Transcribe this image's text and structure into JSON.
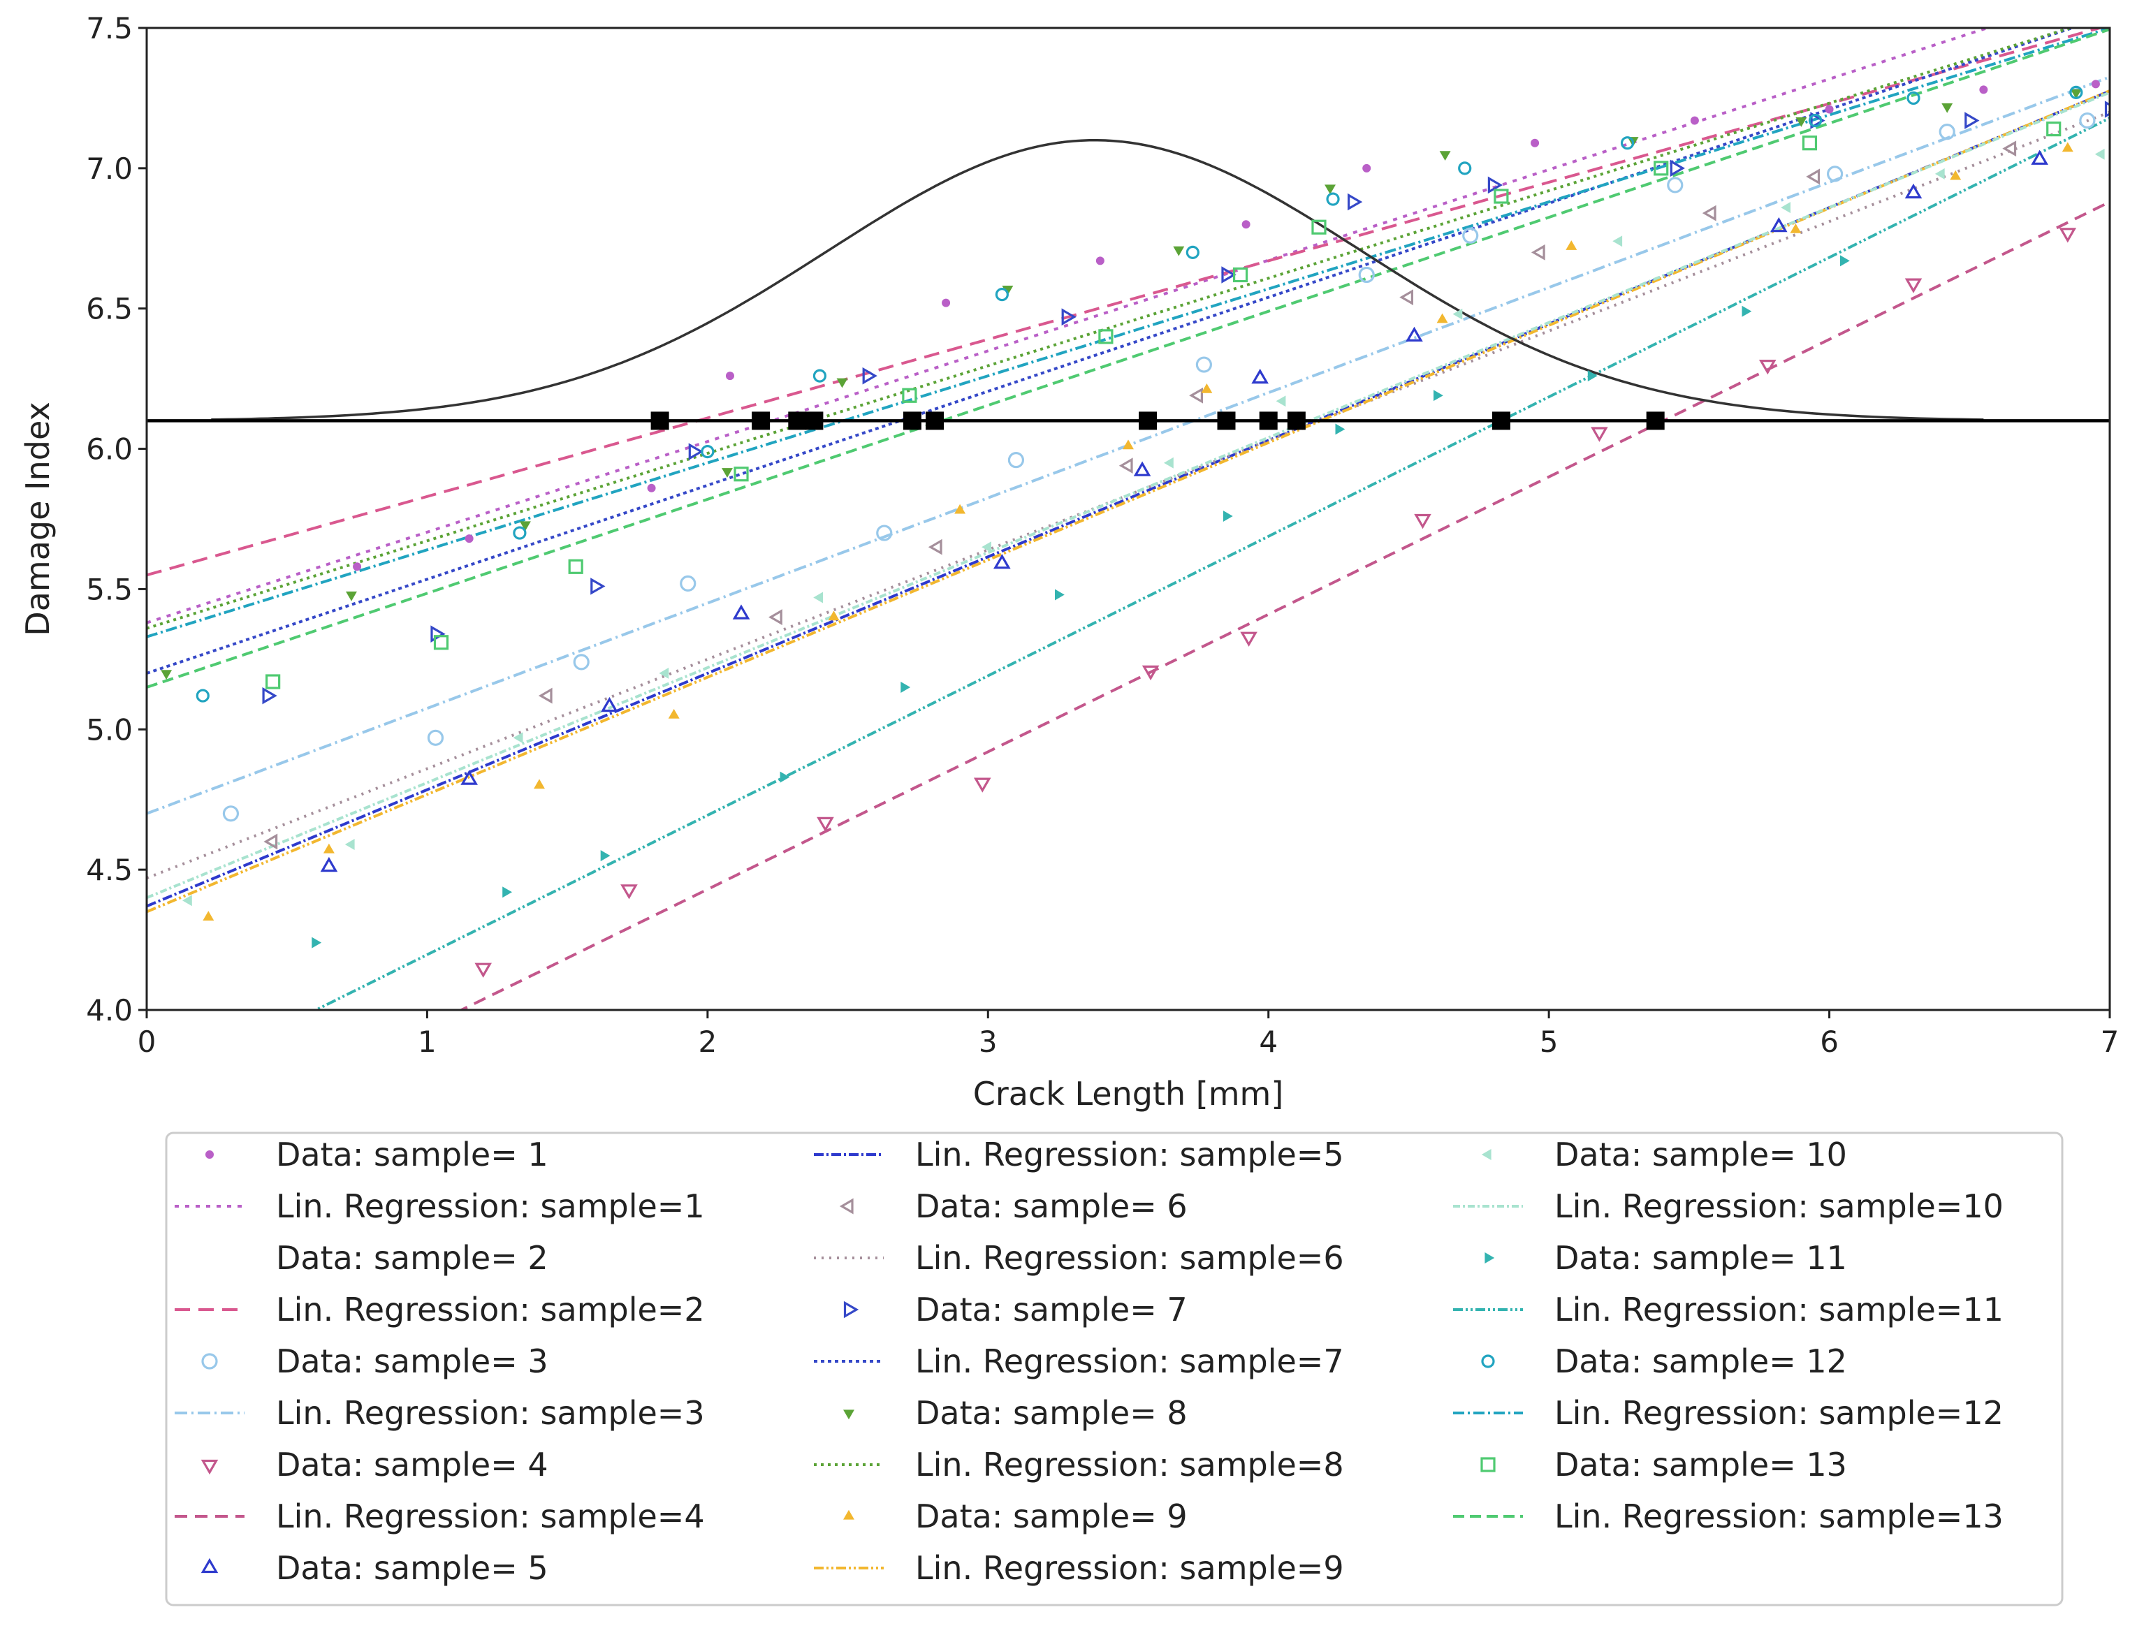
{
  "chart_data": {
    "type": "scatter",
    "title": "",
    "xlabel": "Crack Length [mm]",
    "ylabel": "Damage Index",
    "xlim": [
      0,
      7
    ],
    "ylim": [
      4.0,
      7.5
    ],
    "x_ticks": [
      "0",
      "1",
      "2",
      "3",
      "4",
      "5",
      "6",
      "7"
    ],
    "y_ticks": [
      "4.0",
      "4.5",
      "5.0",
      "5.5",
      "6.0",
      "6.5",
      "7.0",
      "7.5"
    ],
    "grid": false,
    "legend_location": "below",
    "threshold": 6.1,
    "threshold_crossings": [
      1.83,
      2.19,
      2.32,
      2.38,
      2.73,
      2.81,
      3.57,
      3.85,
      4.0,
      4.1,
      4.83,
      5.38
    ],
    "pdf_curve": {
      "mean": 3.38,
      "std": 0.95,
      "baseline": 6.1,
      "peak": 7.1,
      "x_range": [
        0.23,
        6.55
      ]
    },
    "series": [
      {
        "id": 1,
        "data_label": "Data: sample= 1",
        "fit_label": "Lin. Regression: sample=1",
        "color": "#b95fc7",
        "marker": "dot",
        "dash": "6,9",
        "intercept": 5.38,
        "slope": 0.323,
        "x": [
          0.75,
          1.15,
          1.8,
          2.08,
          2.85,
          3.4,
          3.92,
          4.35,
          4.95,
          5.52,
          6.0,
          6.55,
          6.95
        ],
        "y": [
          5.58,
          5.68,
          5.86,
          6.26,
          6.52,
          6.67,
          6.8,
          7.0,
          7.09,
          7.17,
          7.21,
          7.28,
          7.3
        ]
      },
      {
        "id": 2,
        "data_label": "Data: sample= 2",
        "fit_label": "Lin. Regression: sample=2",
        "color": "#d9588f",
        "marker": "none",
        "dash": "22,12",
        "intercept": 5.55,
        "slope": 0.28,
        "x": [],
        "y": []
      },
      {
        "id": 3,
        "data_label": "Data: sample= 3",
        "fit_label": "Lin. Regression: sample=3",
        "color": "#98c8ea",
        "marker": "circle",
        "dash": "18,6,3,6",
        "intercept": 4.7,
        "slope": 0.375,
        "x": [
          0.3,
          1.03,
          1.55,
          1.93,
          2.63,
          3.1,
          3.77,
          4.35,
          4.72,
          5.45,
          6.02,
          6.42,
          6.92
        ],
        "y": [
          4.7,
          4.97,
          5.24,
          5.52,
          5.7,
          5.96,
          6.3,
          6.62,
          6.76,
          6.94,
          6.98,
          7.13,
          7.17
        ]
      },
      {
        "id": 4,
        "data_label": "Data: sample= 4",
        "fit_label": "Lin. Regression: sample=4",
        "color": "#c3578c",
        "marker": "tri-down",
        "dash": "18,11",
        "intercept": 3.45,
        "slope": 0.49,
        "x": [
          1.2,
          1.72,
          2.42,
          2.98,
          3.58,
          3.93,
          4.55,
          5.18,
          5.78,
          6.3,
          6.85
        ],
        "y": [
          4.15,
          4.43,
          4.67,
          4.81,
          5.21,
          5.33,
          5.75,
          6.06,
          6.3,
          6.59,
          6.77
        ]
      },
      {
        "id": 5,
        "data_label": "Data: sample= 5",
        "fit_label": "Lin. Regression: sample=5",
        "color": "#2e3acd",
        "marker": "tri-up",
        "dash": "14,4,3,4",
        "intercept": 4.37,
        "slope": 0.415,
        "x": [
          0.65,
          1.15,
          1.65,
          2.12,
          3.05,
          3.55,
          3.97,
          4.52,
          5.82,
          6.3,
          6.75
        ],
        "y": [
          4.51,
          4.82,
          5.08,
          5.41,
          5.59,
          5.92,
          6.25,
          6.4,
          6.79,
          6.91,
          7.03
        ]
      },
      {
        "id": 6,
        "data_label": "Data: sample= 6",
        "fit_label": "Lin. Regression: sample=6",
        "color": "#a58f9b",
        "marker": "tri-left",
        "dash": "3,8",
        "intercept": 4.47,
        "slope": 0.39,
        "x": [
          0.45,
          1.43,
          2.25,
          2.82,
          3.5,
          3.75,
          4.5,
          4.97,
          5.58,
          5.95,
          6.65
        ],
        "y": [
          4.6,
          5.12,
          5.4,
          5.65,
          5.94,
          6.19,
          6.54,
          6.7,
          6.84,
          6.97,
          7.07
        ]
      },
      {
        "id": 7,
        "data_label": "Data: sample= 7",
        "fit_label": "Lin. Regression: sample=7",
        "color": "#3548c8",
        "marker": "tri-right",
        "dash": "5,5",
        "intercept": 5.2,
        "slope": 0.335,
        "x": [
          0.43,
          1.03,
          1.6,
          1.95,
          2.57,
          3.28,
          3.85,
          4.3,
          4.8,
          5.45,
          5.95,
          6.5,
          7.0
        ],
        "y": [
          5.12,
          5.34,
          5.51,
          5.99,
          6.26,
          6.47,
          6.62,
          6.88,
          6.94,
          7.0,
          7.17,
          7.17,
          7.21
        ]
      },
      {
        "id": 8,
        "data_label": "Data: sample= 8",
        "fit_label": "Lin. Regression: sample=8",
        "color": "#5ba336",
        "marker": "tri-down-small",
        "dash": "4,6",
        "intercept": 5.36,
        "slope": 0.312,
        "x": [
          0.07,
          0.73,
          1.35,
          2.07,
          2.48,
          3.07,
          3.68,
          4.22,
          4.63,
          5.3,
          5.9,
          6.42,
          6.88
        ],
        "y": [
          5.2,
          5.48,
          5.73,
          5.92,
          6.24,
          6.57,
          6.71,
          6.93,
          7.05,
          7.1,
          7.17,
          7.22,
          7.27
        ]
      },
      {
        "id": 9,
        "data_label": "Data: sample= 9",
        "fit_label": "Lin. Regression: sample=9",
        "color": "#f2b72f",
        "marker": "tri-up-small",
        "dash": "14,4,3,4,3,4",
        "intercept": 4.35,
        "slope": 0.418,
        "x": [
          0.22,
          0.65,
          1.4,
          1.88,
          2.45,
          2.9,
          3.5,
          3.78,
          4.62,
          5.08,
          5.88,
          6.45,
          6.85
        ],
        "y": [
          4.33,
          4.57,
          4.8,
          5.05,
          5.4,
          5.78,
          6.01,
          6.21,
          6.46,
          6.72,
          6.78,
          6.97,
          7.07
        ]
      },
      {
        "id": 10,
        "data_label": "Data: sample= 10",
        "fit_label": "Lin. Regression: sample=10",
        "color": "#a8e3cf",
        "marker": "tri-left-small",
        "dash": "10,4,3,4",
        "intercept": 4.4,
        "slope": 0.41,
        "x": [
          0.15,
          0.73,
          1.33,
          1.85,
          2.4,
          3.0,
          3.65,
          4.05,
          4.68,
          5.25,
          5.85,
          6.4,
          6.97
        ],
        "y": [
          4.39,
          4.59,
          4.97,
          5.2,
          5.47,
          5.65,
          5.95,
          6.17,
          6.48,
          6.74,
          6.86,
          6.98,
          7.05
        ]
      },
      {
        "id": 11,
        "data_label": "Data: sample= 11",
        "fit_label": "Lin. Regression: sample=11",
        "color": "#33b3b0",
        "marker": "tri-right-small",
        "dash": "14,4,3,4,3,4",
        "intercept": 3.7,
        "slope": 0.497,
        "x": [
          0.6,
          1.28,
          1.63,
          2.27,
          2.7,
          3.25,
          3.85,
          4.25,
          4.6,
          5.15,
          5.7,
          6.05
        ],
        "y": [
          4.24,
          4.42,
          4.55,
          4.83,
          5.15,
          5.48,
          5.76,
          6.07,
          6.19,
          6.26,
          6.49,
          6.67
        ]
      },
      {
        "id": 12,
        "data_label": "Data: sample= 12",
        "fit_label": "Lin. Regression: sample=12",
        "color": "#21a4c0",
        "marker": "circle-small",
        "dash": "16,5,3,5",
        "intercept": 5.33,
        "slope": 0.31,
        "x": [
          0.2,
          1.33,
          2.0,
          2.4,
          3.05,
          3.73,
          4.23,
          4.7,
          5.28,
          5.95,
          6.3,
          6.88
        ],
        "y": [
          5.12,
          5.7,
          5.99,
          6.26,
          6.55,
          6.7,
          6.89,
          7.0,
          7.09,
          7.17,
          7.25,
          7.27
        ]
      },
      {
        "id": 13,
        "data_label": "Data: sample= 13",
        "fit_label": "Lin. Regression: sample=13",
        "color": "#4fca71",
        "marker": "square",
        "dash": "16,8",
        "intercept": 5.15,
        "slope": 0.335,
        "x": [
          0.45,
          1.05,
          1.53,
          2.12,
          2.72,
          3.42,
          3.9,
          4.18,
          4.83,
          5.4,
          5.93,
          6.8
        ],
        "y": [
          5.17,
          5.31,
          5.58,
          5.91,
          6.19,
          6.4,
          6.62,
          6.79,
          6.9,
          7.0,
          7.09,
          7.14
        ]
      }
    ]
  }
}
